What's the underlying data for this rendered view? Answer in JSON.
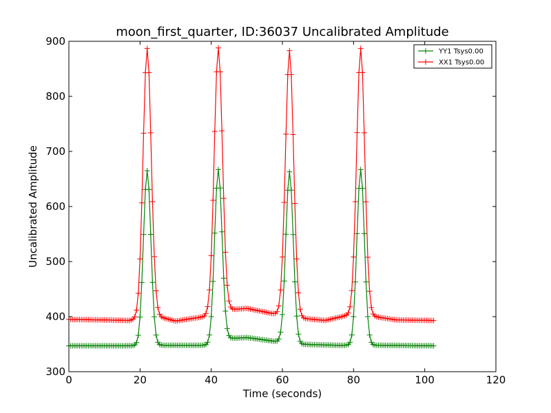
{
  "chart_data": {
    "type": "line",
    "title": "moon_first_quarter, ID:36037 Uncalibrated Amplitude",
    "xlabel": "Time (seconds)",
    "ylabel": "Uncalibrated Amplitude",
    "xlim": [
      0,
      120
    ],
    "ylim": [
      300,
      900
    ],
    "xticks": [
      0,
      20,
      40,
      60,
      80,
      100,
      120
    ],
    "yticks": [
      300,
      400,
      500,
      600,
      700,
      800,
      900
    ],
    "xtick_labels": [
      "0",
      "20",
      "40",
      "60",
      "80",
      "100",
      "120"
    ],
    "ytick_labels": [
      "300",
      "400",
      "500",
      "600",
      "700",
      "800",
      "900"
    ],
    "grid": false,
    "legend_position": "top-right",
    "series": [
      {
        "name": "YY1 Tsys0.00",
        "color": "#008000",
        "marker": "plus",
        "x_range": [
          0,
          102.5
        ],
        "sample_interval": 0.5,
        "baseline_points": [
          [
            0,
            347
          ],
          [
            15,
            347
          ],
          [
            25,
            348
          ],
          [
            40,
            348
          ],
          [
            44,
            360
          ],
          [
            50,
            362
          ],
          [
            58,
            355
          ],
          [
            64,
            350
          ],
          [
            75,
            348
          ],
          [
            78,
            348
          ],
          [
            88,
            348
          ],
          [
            102.5,
            347
          ]
        ],
        "peaks": [
          {
            "center": 22,
            "peak": 665,
            "width": 1.05
          },
          {
            "center": 42,
            "peak": 667,
            "width": 1.05
          },
          {
            "center": 62,
            "peak": 663,
            "width": 1.05
          },
          {
            "center": 82,
            "peak": 667,
            "width": 1.05
          }
        ]
      },
      {
        "name": "XX1 Tsys0.00",
        "color": "#ff0000",
        "marker": "plus",
        "x_range": [
          0,
          102.5
        ],
        "sample_interval": 0.5,
        "baseline_points": [
          [
            0,
            395
          ],
          [
            10,
            394
          ],
          [
            17,
            393
          ],
          [
            24,
            402
          ],
          [
            30,
            392
          ],
          [
            38,
            400
          ],
          [
            44,
            412
          ],
          [
            50,
            415
          ],
          [
            57,
            406
          ],
          [
            64,
            398
          ],
          [
            72,
            393
          ],
          [
            78,
            402
          ],
          [
            86,
            400
          ],
          [
            92,
            394
          ],
          [
            102.5,
            393
          ]
        ],
        "peaks": [
          {
            "center": 22,
            "peak": 887,
            "width": 1.15
          },
          {
            "center": 42,
            "peak": 888,
            "width": 1.15
          },
          {
            "center": 62,
            "peak": 883,
            "width": 1.15
          },
          {
            "center": 82,
            "peak": 887,
            "width": 1.15
          }
        ]
      }
    ]
  }
}
